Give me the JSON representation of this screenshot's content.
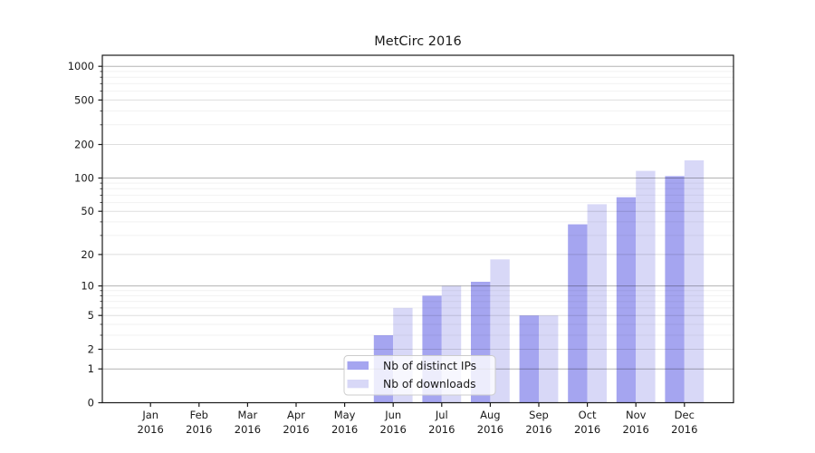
{
  "title": "MetCirc 2016",
  "chart_data": {
    "type": "bar",
    "title": "MetCirc 2016",
    "categories": [
      "Jan",
      "Feb",
      "Mar",
      "Apr",
      "May",
      "Jun",
      "Jul",
      "Aug",
      "Sep",
      "Oct",
      "Nov",
      "Dec"
    ],
    "year": "2016",
    "series": [
      {
        "name": "Nb of distinct IPs",
        "color": "#a5a5f0",
        "values": [
          0,
          0,
          0,
          0,
          0,
          3,
          8,
          11,
          5,
          38,
          67,
          104
        ]
      },
      {
        "name": "Nb of downloads",
        "color": "#d8d8f7",
        "values": [
          0,
          0,
          0,
          0,
          0,
          6,
          10,
          18,
          5,
          58,
          116,
          144
        ]
      }
    ],
    "xlabel": "",
    "ylabel": "",
    "y_scale": "log1p",
    "y_ticks": [
      0,
      1,
      2,
      5,
      10,
      20,
      50,
      100,
      200,
      500,
      1000
    ],
    "y_minor_ticks_per_decade": [
      3,
      4,
      6,
      7,
      8,
      9
    ],
    "ylim": [
      0,
      1250
    ],
    "grid": true,
    "legend_position": "lower-center",
    "colors": {
      "axis": "#1a1a1a",
      "grid_decade": "rgba(0,0,0,0.30)",
      "grid_major": "rgba(0,0,0,0.13)",
      "grid_minor": "rgba(0,0,0,0.055)",
      "legend_border": "#cccccc",
      "legend_bg": "rgba(255,255,255,0.8)"
    }
  }
}
